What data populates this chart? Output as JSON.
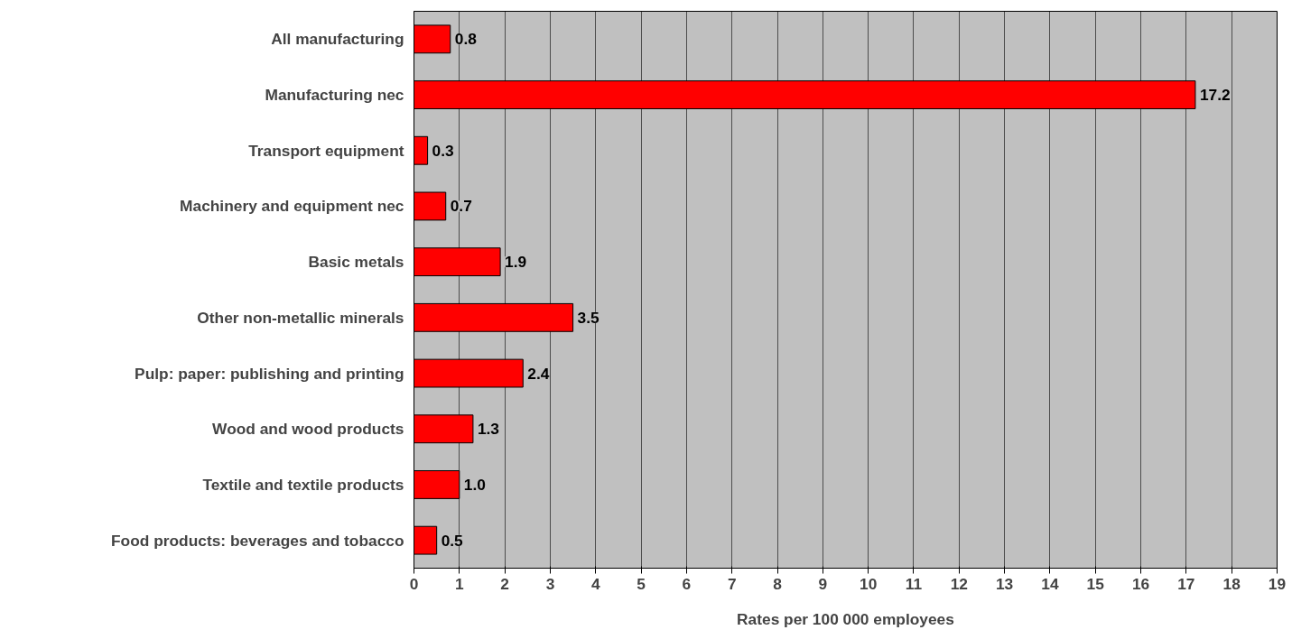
{
  "chart_data": {
    "type": "bar",
    "orientation": "horizontal",
    "xlabel": "Rates per 100 000 employees",
    "categories": [
      "All manufacturing",
      "Manufacturing nec",
      "Transport equipment",
      "Machinery and equipment nec",
      "Basic metals",
      "Other non-metallic minerals",
      "Pulp: paper: publishing and printing",
      "Wood and wood products",
      "Textile and textile products",
      "Food products: beverages and tobacco"
    ],
    "values": [
      0.8,
      17.2,
      0.3,
      0.7,
      1.9,
      3.5,
      2.4,
      1.3,
      1.0,
      0.5
    ],
    "color": "#ff0000",
    "value_labels": [
      "0.8",
      "17.2",
      "0.3",
      "0.7",
      "1.9",
      "3.5",
      "2.4",
      "1.3",
      "1.0",
      "0.5"
    ],
    "grid": "x",
    "xlim": [
      0,
      19
    ],
    "xticks": [
      0,
      1,
      2,
      3,
      4,
      5,
      6,
      7,
      8,
      9,
      10,
      11,
      12,
      13,
      14,
      15,
      16,
      17,
      18,
      19
    ]
  }
}
